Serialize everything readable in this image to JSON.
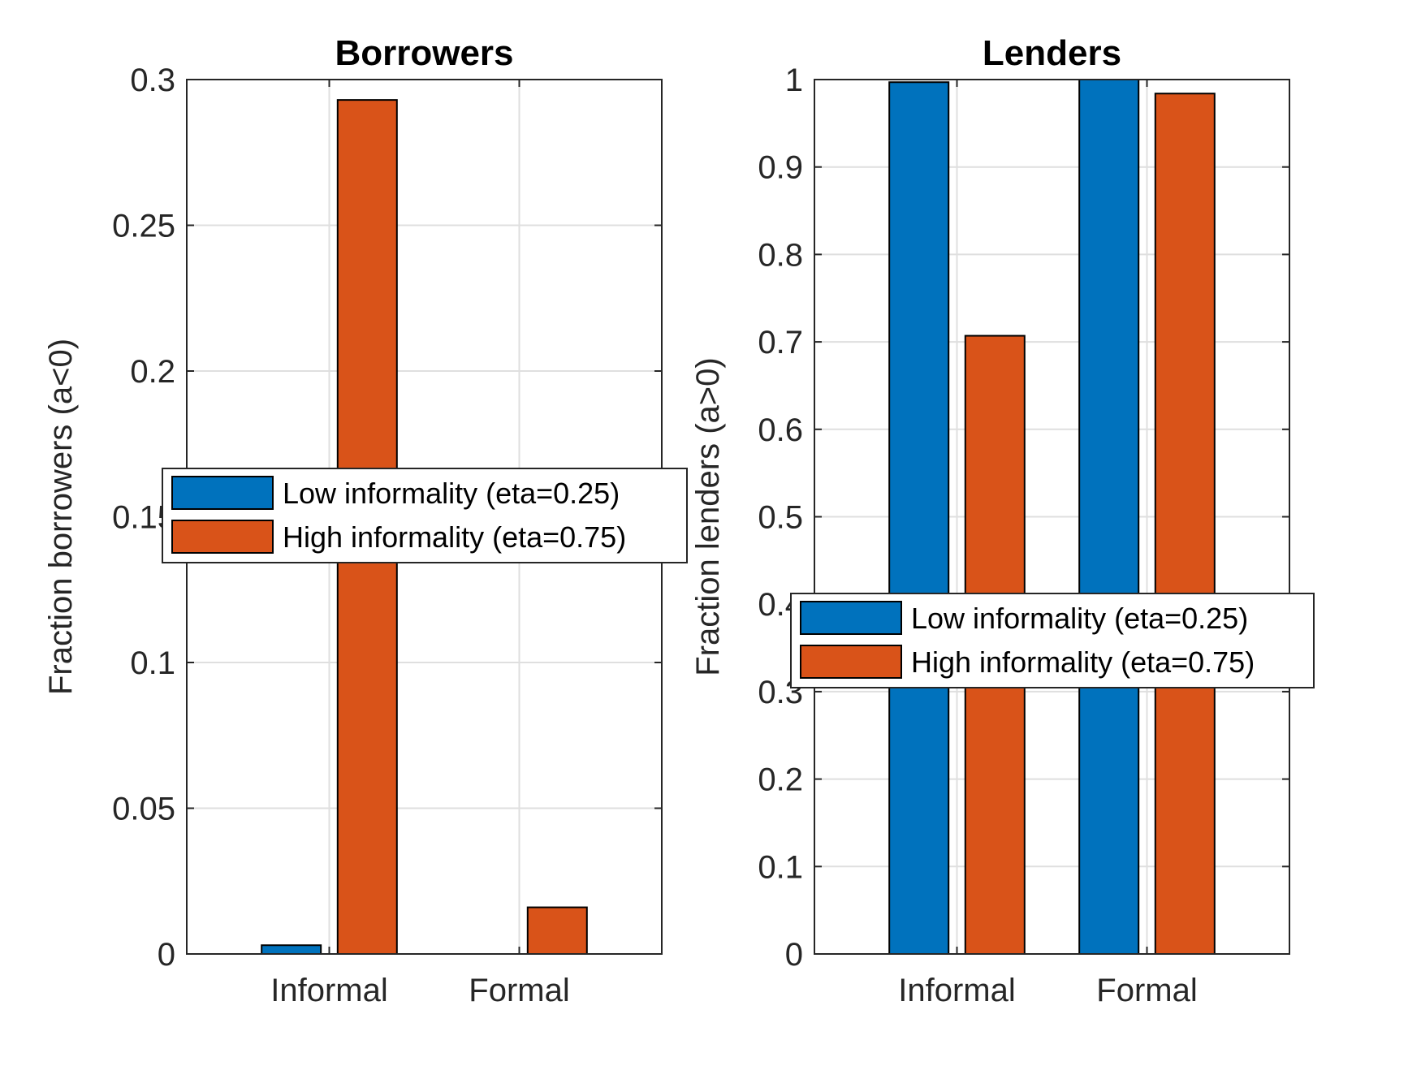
{
  "colors": {
    "low": "#0072BD",
    "high": "#D95319",
    "axis": "#262626",
    "grid": "#DFDFDF",
    "edge": "#000000"
  },
  "chart_data": [
    {
      "type": "bar",
      "title": "Borrowers",
      "xlabel": "",
      "ylabel": "Fraction borrowers (a<0)",
      "categories": [
        "Informal",
        "Formal"
      ],
      "series": [
        {
          "name": "Low informality (eta=0.25)",
          "color": "#0072BD",
          "values": [
            0.003,
            0.0
          ]
        },
        {
          "name": "High informality (eta=0.75)",
          "color": "#D95319",
          "values": [
            0.293,
            0.016
          ]
        }
      ],
      "ylim": [
        0,
        0.3
      ],
      "yticks": [
        "0",
        "0.05",
        "0.1",
        "0.15",
        "0.2",
        "0.25",
        "0.3"
      ],
      "ytick_values": [
        0,
        0.05,
        0.1,
        0.15,
        0.2,
        0.25,
        0.3
      ],
      "grid": true,
      "legend_position": "center-left"
    },
    {
      "type": "bar",
      "title": "Lenders",
      "xlabel": "",
      "ylabel": "Fraction lenders (a>0)",
      "categories": [
        "Informal",
        "Formal"
      ],
      "series": [
        {
          "name": "Low informality (eta=0.25)",
          "color": "#0072BD",
          "values": [
            0.997,
            1.0
          ]
        },
        {
          "name": "High informality (eta=0.75)",
          "color": "#D95319",
          "values": [
            0.707,
            0.984
          ]
        }
      ],
      "ylim": [
        0,
        1
      ],
      "yticks": [
        "0",
        "0.1",
        "0.2",
        "0.3",
        "0.4",
        "0.5",
        "0.6",
        "0.7",
        "0.8",
        "0.9",
        "1"
      ],
      "ytick_values": [
        0,
        0.1,
        0.2,
        0.3,
        0.4,
        0.5,
        0.6,
        0.7,
        0.8,
        0.9,
        1
      ],
      "grid": true,
      "legend_position": "lower-center"
    }
  ]
}
